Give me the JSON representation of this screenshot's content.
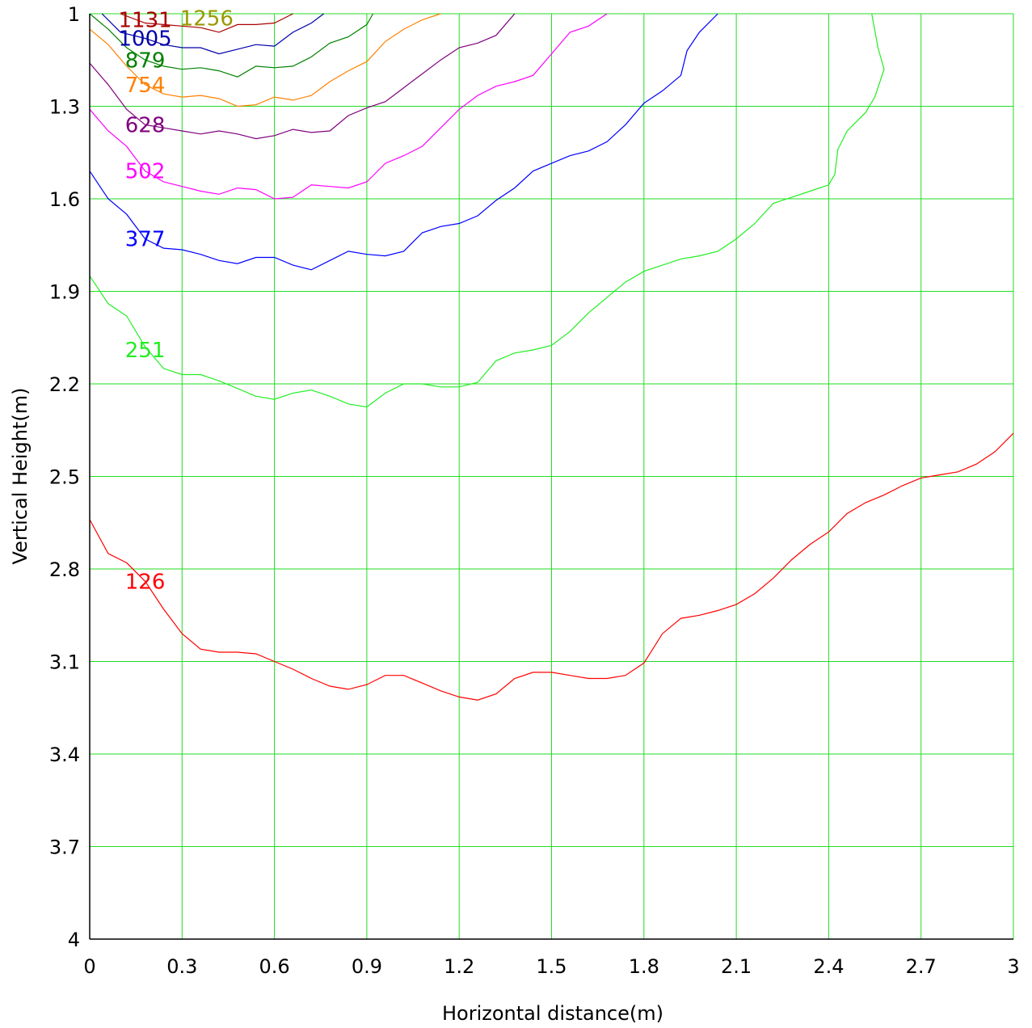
{
  "chart_data": {
    "type": "line",
    "title": "",
    "xlabel": "Horizontal distance(m)",
    "ylabel": "Vertical Height(m)",
    "xlim": [
      0,
      3
    ],
    "ylim": [
      1,
      4
    ],
    "y_inverted": true,
    "grid": true,
    "legend": "none",
    "xticks": [
      "0",
      "0.3",
      "0.6",
      "0.9",
      "1.2",
      "1.5",
      "1.8",
      "2.1",
      "2.4",
      "2.7",
      "3"
    ],
    "yticks": [
      "1",
      "1.3",
      "1.6",
      "1.9",
      "2.2",
      "2.5",
      "2.8",
      "3.1",
      "3.4",
      "3.7",
      "4"
    ],
    "colors": {
      "grid": "#22dd22",
      "axis": "#000000"
    },
    "series": [
      {
        "name": "126",
        "color": "#ff0000",
        "label_at": [
          0.18,
          2.84
        ],
        "points": [
          [
            0,
            2.64
          ],
          [
            0.06,
            2.75
          ],
          [
            0.12,
            2.78
          ],
          [
            0.18,
            2.84
          ],
          [
            0.24,
            2.93
          ],
          [
            0.3,
            3.01
          ],
          [
            0.36,
            3.06
          ],
          [
            0.42,
            3.07
          ],
          [
            0.48,
            3.07
          ],
          [
            0.54,
            3.075
          ],
          [
            0.6,
            3.1
          ],
          [
            0.66,
            3.125
          ],
          [
            0.72,
            3.155
          ],
          [
            0.78,
            3.18
          ],
          [
            0.84,
            3.19
          ],
          [
            0.9,
            3.175
          ],
          [
            0.96,
            3.145
          ],
          [
            1.02,
            3.145
          ],
          [
            1.08,
            3.17
          ],
          [
            1.14,
            3.195
          ],
          [
            1.2,
            3.215
          ],
          [
            1.26,
            3.225
          ],
          [
            1.32,
            3.205
          ],
          [
            1.38,
            3.155
          ],
          [
            1.44,
            3.135
          ],
          [
            1.5,
            3.135
          ],
          [
            1.56,
            3.145
          ],
          [
            1.62,
            3.155
          ],
          [
            1.68,
            3.155
          ],
          [
            1.74,
            3.145
          ],
          [
            1.8,
            3.105
          ],
          [
            1.86,
            3.01
          ],
          [
            1.92,
            2.96
          ],
          [
            1.98,
            2.95
          ],
          [
            2.04,
            2.935
          ],
          [
            2.1,
            2.915
          ],
          [
            2.16,
            2.88
          ],
          [
            2.22,
            2.83
          ],
          [
            2.28,
            2.77
          ],
          [
            2.34,
            2.72
          ],
          [
            2.4,
            2.68
          ],
          [
            2.46,
            2.62
          ],
          [
            2.52,
            2.585
          ],
          [
            2.58,
            2.56
          ],
          [
            2.64,
            2.53
          ],
          [
            2.7,
            2.505
          ],
          [
            2.76,
            2.495
          ],
          [
            2.82,
            2.485
          ],
          [
            2.88,
            2.46
          ],
          [
            2.94,
            2.42
          ],
          [
            3,
            2.36
          ]
        ]
      },
      {
        "name": "251",
        "color": "#22ee22",
        "label_at": [
          0.18,
          2.09
        ],
        "points": [
          [
            0,
            1.85
          ],
          [
            0.06,
            1.94
          ],
          [
            0.12,
            1.98
          ],
          [
            0.18,
            2.08
          ],
          [
            0.24,
            2.15
          ],
          [
            0.3,
            2.17
          ],
          [
            0.36,
            2.17
          ],
          [
            0.42,
            2.19
          ],
          [
            0.48,
            2.215
          ],
          [
            0.54,
            2.24
          ],
          [
            0.6,
            2.25
          ],
          [
            0.66,
            2.23
          ],
          [
            0.72,
            2.22
          ],
          [
            0.78,
            2.24
          ],
          [
            0.84,
            2.265
          ],
          [
            0.9,
            2.275
          ],
          [
            0.96,
            2.23
          ],
          [
            1.02,
            2.2
          ],
          [
            1.08,
            2.2
          ],
          [
            1.14,
            2.21
          ],
          [
            1.2,
            2.21
          ],
          [
            1.26,
            2.195
          ],
          [
            1.32,
            2.125
          ],
          [
            1.38,
            2.1
          ],
          [
            1.44,
            2.09
          ],
          [
            1.5,
            2.075
          ],
          [
            1.56,
            2.03
          ],
          [
            1.62,
            1.97
          ],
          [
            1.68,
            1.92
          ],
          [
            1.74,
            1.87
          ],
          [
            1.8,
            1.835
          ],
          [
            1.86,
            1.815
          ],
          [
            1.92,
            1.795
          ],
          [
            1.98,
            1.785
          ],
          [
            2.04,
            1.77
          ],
          [
            2.1,
            1.73
          ],
          [
            2.16,
            1.68
          ],
          [
            2.22,
            1.615
          ],
          [
            2.28,
            1.595
          ],
          [
            2.34,
            1.575
          ],
          [
            2.4,
            1.555
          ],
          [
            2.42,
            1.52
          ],
          [
            2.43,
            1.44
          ],
          [
            2.46,
            1.38
          ],
          [
            2.52,
            1.32
          ],
          [
            2.55,
            1.27
          ],
          [
            2.58,
            1.18
          ],
          [
            2.56,
            1.11
          ],
          [
            2.54,
            1.0
          ]
        ]
      },
      {
        "name": "377",
        "color": "#0000ff",
        "label_at": [
          0.18,
          1.73
        ],
        "points": [
          [
            0,
            1.51
          ],
          [
            0.06,
            1.6
          ],
          [
            0.12,
            1.65
          ],
          [
            0.18,
            1.73
          ],
          [
            0.24,
            1.76
          ],
          [
            0.3,
            1.765
          ],
          [
            0.36,
            1.78
          ],
          [
            0.42,
            1.8
          ],
          [
            0.48,
            1.81
          ],
          [
            0.54,
            1.79
          ],
          [
            0.6,
            1.79
          ],
          [
            0.66,
            1.815
          ],
          [
            0.72,
            1.83
          ],
          [
            0.78,
            1.8
          ],
          [
            0.84,
            1.77
          ],
          [
            0.9,
            1.78
          ],
          [
            0.96,
            1.785
          ],
          [
            1.02,
            1.77
          ],
          [
            1.08,
            1.71
          ],
          [
            1.14,
            1.69
          ],
          [
            1.2,
            1.68
          ],
          [
            1.26,
            1.655
          ],
          [
            1.32,
            1.605
          ],
          [
            1.38,
            1.565
          ],
          [
            1.44,
            1.51
          ],
          [
            1.5,
            1.485
          ],
          [
            1.56,
            1.46
          ],
          [
            1.62,
            1.445
          ],
          [
            1.68,
            1.415
          ],
          [
            1.74,
            1.36
          ],
          [
            1.8,
            1.29
          ],
          [
            1.86,
            1.25
          ],
          [
            1.92,
            1.2
          ],
          [
            1.94,
            1.12
          ],
          [
            1.98,
            1.06
          ],
          [
            2.04,
            1.0
          ]
        ]
      },
      {
        "name": "502",
        "color": "#ff00ff",
        "label_at": [
          0.18,
          1.51
        ],
        "points": [
          [
            0,
            1.31
          ],
          [
            0.06,
            1.38
          ],
          [
            0.12,
            1.43
          ],
          [
            0.18,
            1.51
          ],
          [
            0.24,
            1.545
          ],
          [
            0.3,
            1.56
          ],
          [
            0.36,
            1.575
          ],
          [
            0.42,
            1.585
          ],
          [
            0.48,
            1.565
          ],
          [
            0.54,
            1.57
          ],
          [
            0.6,
            1.6
          ],
          [
            0.66,
            1.595
          ],
          [
            0.72,
            1.555
          ],
          [
            0.78,
            1.56
          ],
          [
            0.84,
            1.565
          ],
          [
            0.9,
            1.545
          ],
          [
            0.96,
            1.485
          ],
          [
            1.02,
            1.46
          ],
          [
            1.08,
            1.43
          ],
          [
            1.14,
            1.37
          ],
          [
            1.2,
            1.31
          ],
          [
            1.26,
            1.265
          ],
          [
            1.32,
            1.235
          ],
          [
            1.38,
            1.22
          ],
          [
            1.44,
            1.2
          ],
          [
            1.5,
            1.13
          ],
          [
            1.56,
            1.06
          ],
          [
            1.62,
            1.04
          ],
          [
            1.68,
            1.0
          ]
        ]
      },
      {
        "name": "628",
        "color": "#800080",
        "label_at": [
          0.18,
          1.36
        ],
        "points": [
          [
            0,
            1.16
          ],
          [
            0.06,
            1.23
          ],
          [
            0.12,
            1.31
          ],
          [
            0.18,
            1.36
          ],
          [
            0.24,
            1.37
          ],
          [
            0.3,
            1.38
          ],
          [
            0.36,
            1.39
          ],
          [
            0.42,
            1.38
          ],
          [
            0.48,
            1.39
          ],
          [
            0.54,
            1.405
          ],
          [
            0.6,
            1.395
          ],
          [
            0.66,
            1.375
          ],
          [
            0.72,
            1.385
          ],
          [
            0.78,
            1.38
          ],
          [
            0.84,
            1.33
          ],
          [
            0.9,
            1.305
          ],
          [
            0.96,
            1.285
          ],
          [
            1.02,
            1.24
          ],
          [
            1.08,
            1.195
          ],
          [
            1.14,
            1.15
          ],
          [
            1.2,
            1.11
          ],
          [
            1.26,
            1.095
          ],
          [
            1.32,
            1.07
          ],
          [
            1.38,
            1.0
          ]
        ]
      },
      {
        "name": "754",
        "color": "#ff8000",
        "label_at": [
          0.18,
          1.23
        ],
        "points": [
          [
            0,
            1.05
          ],
          [
            0.06,
            1.1
          ],
          [
            0.12,
            1.17
          ],
          [
            0.18,
            1.23
          ],
          [
            0.24,
            1.26
          ],
          [
            0.3,
            1.27
          ],
          [
            0.36,
            1.265
          ],
          [
            0.42,
            1.275
          ],
          [
            0.48,
            1.3
          ],
          [
            0.54,
            1.295
          ],
          [
            0.6,
            1.27
          ],
          [
            0.66,
            1.28
          ],
          [
            0.72,
            1.265
          ],
          [
            0.78,
            1.22
          ],
          [
            0.84,
            1.185
          ],
          [
            0.9,
            1.155
          ],
          [
            0.96,
            1.09
          ],
          [
            1.02,
            1.05
          ],
          [
            1.08,
            1.02
          ],
          [
            1.14,
            1.0
          ]
        ]
      },
      {
        "name": "879",
        "color": "#008000",
        "label_at": [
          0.18,
          1.15
        ],
        "points": [
          [
            0,
            1.0
          ],
          [
            0.06,
            1.05
          ],
          [
            0.12,
            1.11
          ],
          [
            0.18,
            1.15
          ],
          [
            0.24,
            1.17
          ],
          [
            0.3,
            1.18
          ],
          [
            0.36,
            1.175
          ],
          [
            0.42,
            1.185
          ],
          [
            0.48,
            1.205
          ],
          [
            0.54,
            1.17
          ],
          [
            0.6,
            1.175
          ],
          [
            0.66,
            1.17
          ],
          [
            0.72,
            1.14
          ],
          [
            0.78,
            1.095
          ],
          [
            0.84,
            1.075
          ],
          [
            0.9,
            1.035
          ],
          [
            0.92,
            1.0
          ]
        ]
      },
      {
        "name": "1005",
        "color": "#0000aa",
        "label_at": [
          0.18,
          1.08
        ],
        "points": [
          [
            0.04,
            1.0
          ],
          [
            0.1,
            1.06
          ],
          [
            0.18,
            1.08
          ],
          [
            0.24,
            1.1
          ],
          [
            0.3,
            1.11
          ],
          [
            0.36,
            1.11
          ],
          [
            0.42,
            1.13
          ],
          [
            0.48,
            1.115
          ],
          [
            0.54,
            1.1
          ],
          [
            0.6,
            1.105
          ],
          [
            0.66,
            1.06
          ],
          [
            0.72,
            1.03
          ],
          [
            0.76,
            1.0
          ]
        ]
      },
      {
        "name": "1131",
        "color": "#aa0000",
        "label_at": [
          0.18,
          1.02
        ],
        "points": [
          [
            0.1,
            1.0
          ],
          [
            0.18,
            1.03
          ],
          [
            0.24,
            1.035
          ],
          [
            0.3,
            1.04
          ],
          [
            0.36,
            1.045
          ],
          [
            0.42,
            1.06
          ],
          [
            0.48,
            1.035
          ],
          [
            0.54,
            1.035
          ],
          [
            0.6,
            1.03
          ],
          [
            0.66,
            1.0
          ]
        ]
      },
      {
        "name": "1256",
        "color": "#999900",
        "label_at": [
          0.38,
          1.015
        ],
        "points": []
      }
    ]
  }
}
